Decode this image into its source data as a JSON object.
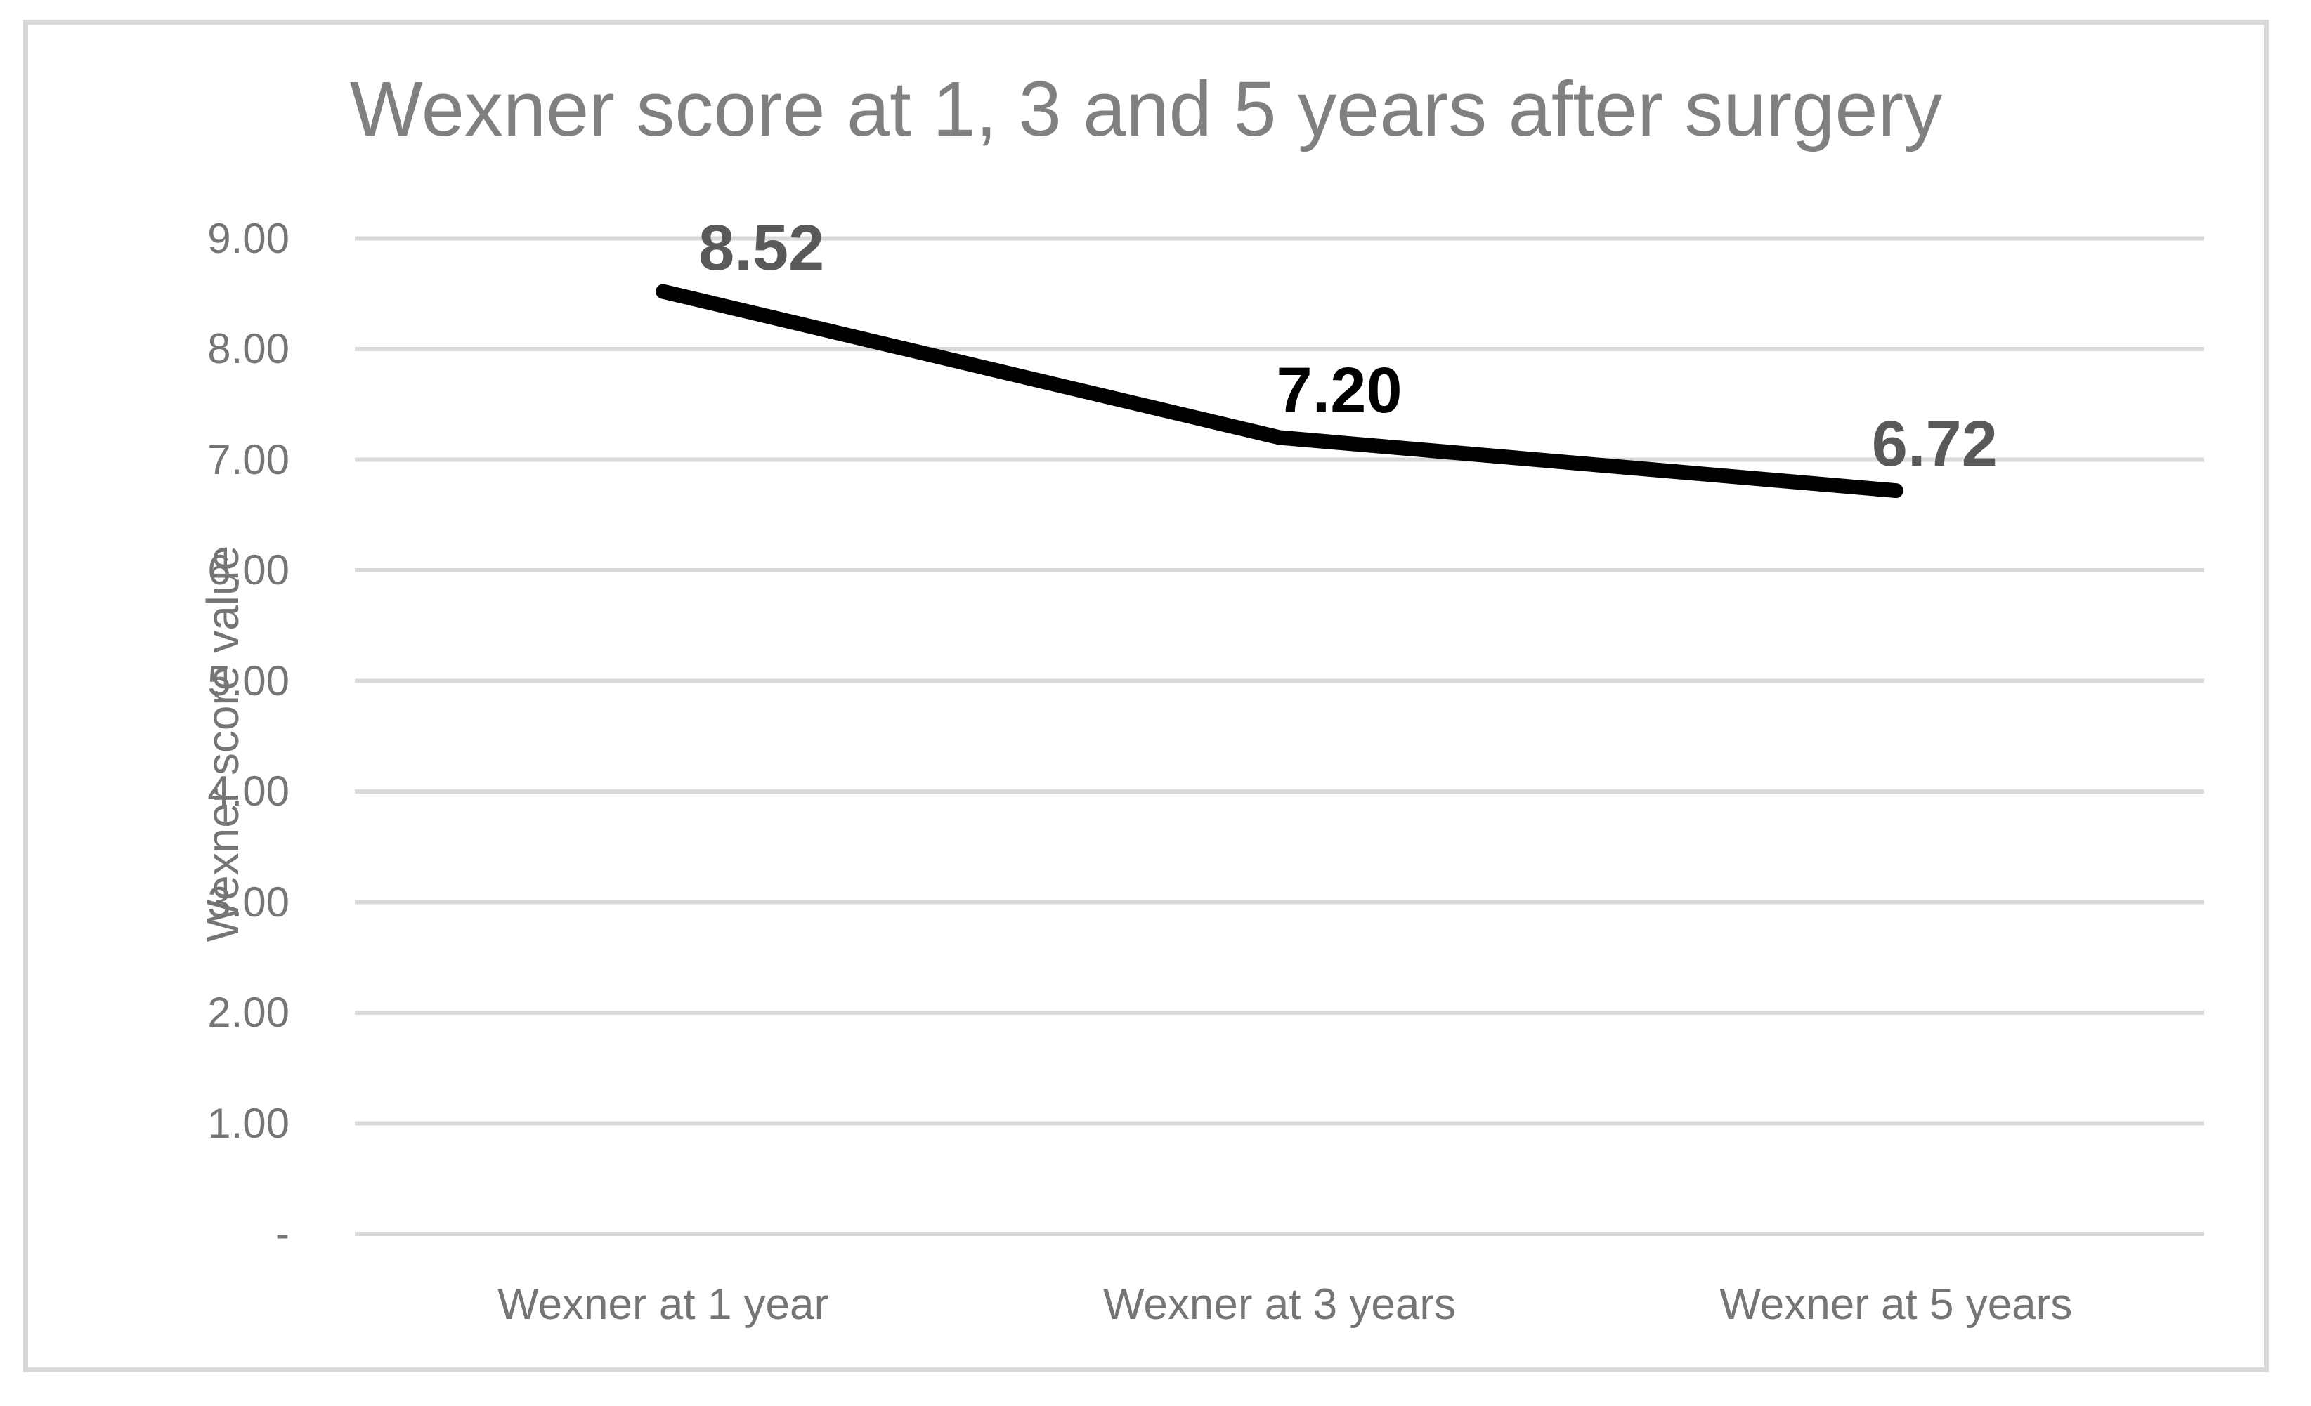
{
  "chart_data": {
    "type": "line",
    "title": "Wexner score at 1, 3 and 5 years after surgery",
    "ylabel": "Wexner score value",
    "xlabel": "",
    "categories": [
      "Wexner at 1 year",
      "Wexner at 3 years",
      "Wexner at 5 years"
    ],
    "values": [
      8.52,
      7.2,
      6.72
    ],
    "data_labels": [
      "8.52",
      "7.20",
      "6.72"
    ],
    "data_label_colors": [
      "#595959",
      "#000000",
      "#595959"
    ],
    "ytick_labels": [
      "9.00",
      "8.00",
      "7.00",
      "6.00",
      "5.00",
      "4.00",
      "3.00",
      "2.00",
      "1.00",
      "-"
    ],
    "ytick_values": [
      9,
      8,
      7,
      6,
      5,
      4,
      3,
      2,
      1,
      0
    ],
    "ylim": [
      0,
      9
    ],
    "grid": "horizontal",
    "legend": "none",
    "line_color": "#000000",
    "gridline_color": "#d9d9d9",
    "frame_border_color": "#d9d9d9",
    "title_color": "#808080",
    "axis_text_color": "#757575"
  }
}
